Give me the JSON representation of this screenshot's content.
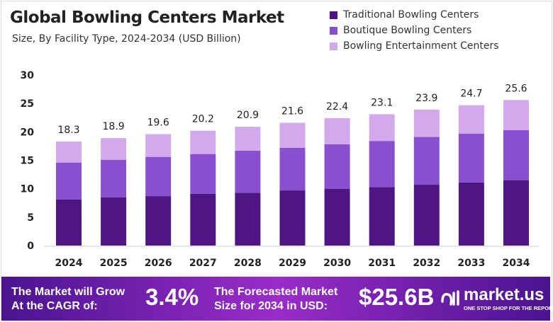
{
  "chart_data": {
    "type": "bar",
    "stacked": true,
    "title": "Global Bowling Centers Market",
    "subtitle": "Size, By Facility Type, 2024-2034 (USD Billion)",
    "categories": [
      "2024",
      "2025",
      "2026",
      "2027",
      "2028",
      "2029",
      "2030",
      "2031",
      "2032",
      "2033",
      "2034"
    ],
    "series": [
      {
        "name": "Traditional Bowling Centers",
        "color": "#4e1583",
        "values": [
          8.1,
          8.5,
          8.7,
          9.1,
          9.3,
          9.7,
          10.0,
          10.3,
          10.7,
          11.1,
          11.5
        ]
      },
      {
        "name": "Boutique Bowling Centers",
        "color": "#8a4fcf",
        "values": [
          6.5,
          6.6,
          6.9,
          7.0,
          7.4,
          7.5,
          7.8,
          8.1,
          8.4,
          8.6,
          8.8
        ]
      },
      {
        "name": "Bowling Entertainment Centers",
        "color": "#d1a9ec",
        "values": [
          3.7,
          3.8,
          4.0,
          4.1,
          4.2,
          4.4,
          4.6,
          4.7,
          4.8,
          5.0,
          5.3
        ]
      }
    ],
    "totals": [
      "18.3",
      "18.9",
      "19.6",
      "20.2",
      "20.9",
      "21.6",
      "22.4",
      "23.1",
      "23.9",
      "24.7",
      "25.6"
    ],
    "yticks": [
      "0",
      "5",
      "10",
      "15",
      "20",
      "25",
      "30"
    ],
    "ylim": [
      0,
      30
    ],
    "grid": false,
    "legend": "top-right"
  },
  "banner": {
    "cagr_label": [
      "The Market will Grow",
      "At the CAGR of:"
    ],
    "cagr_value": "3.4%",
    "forecast_label": [
      "The Forecasted Market",
      "Size for 2034 in USD:"
    ],
    "forecast_value": "$25.6B",
    "logo_name": "market.us",
    "logo_tagline": "ONE STOP SHOP FOR THE REPORTS"
  }
}
